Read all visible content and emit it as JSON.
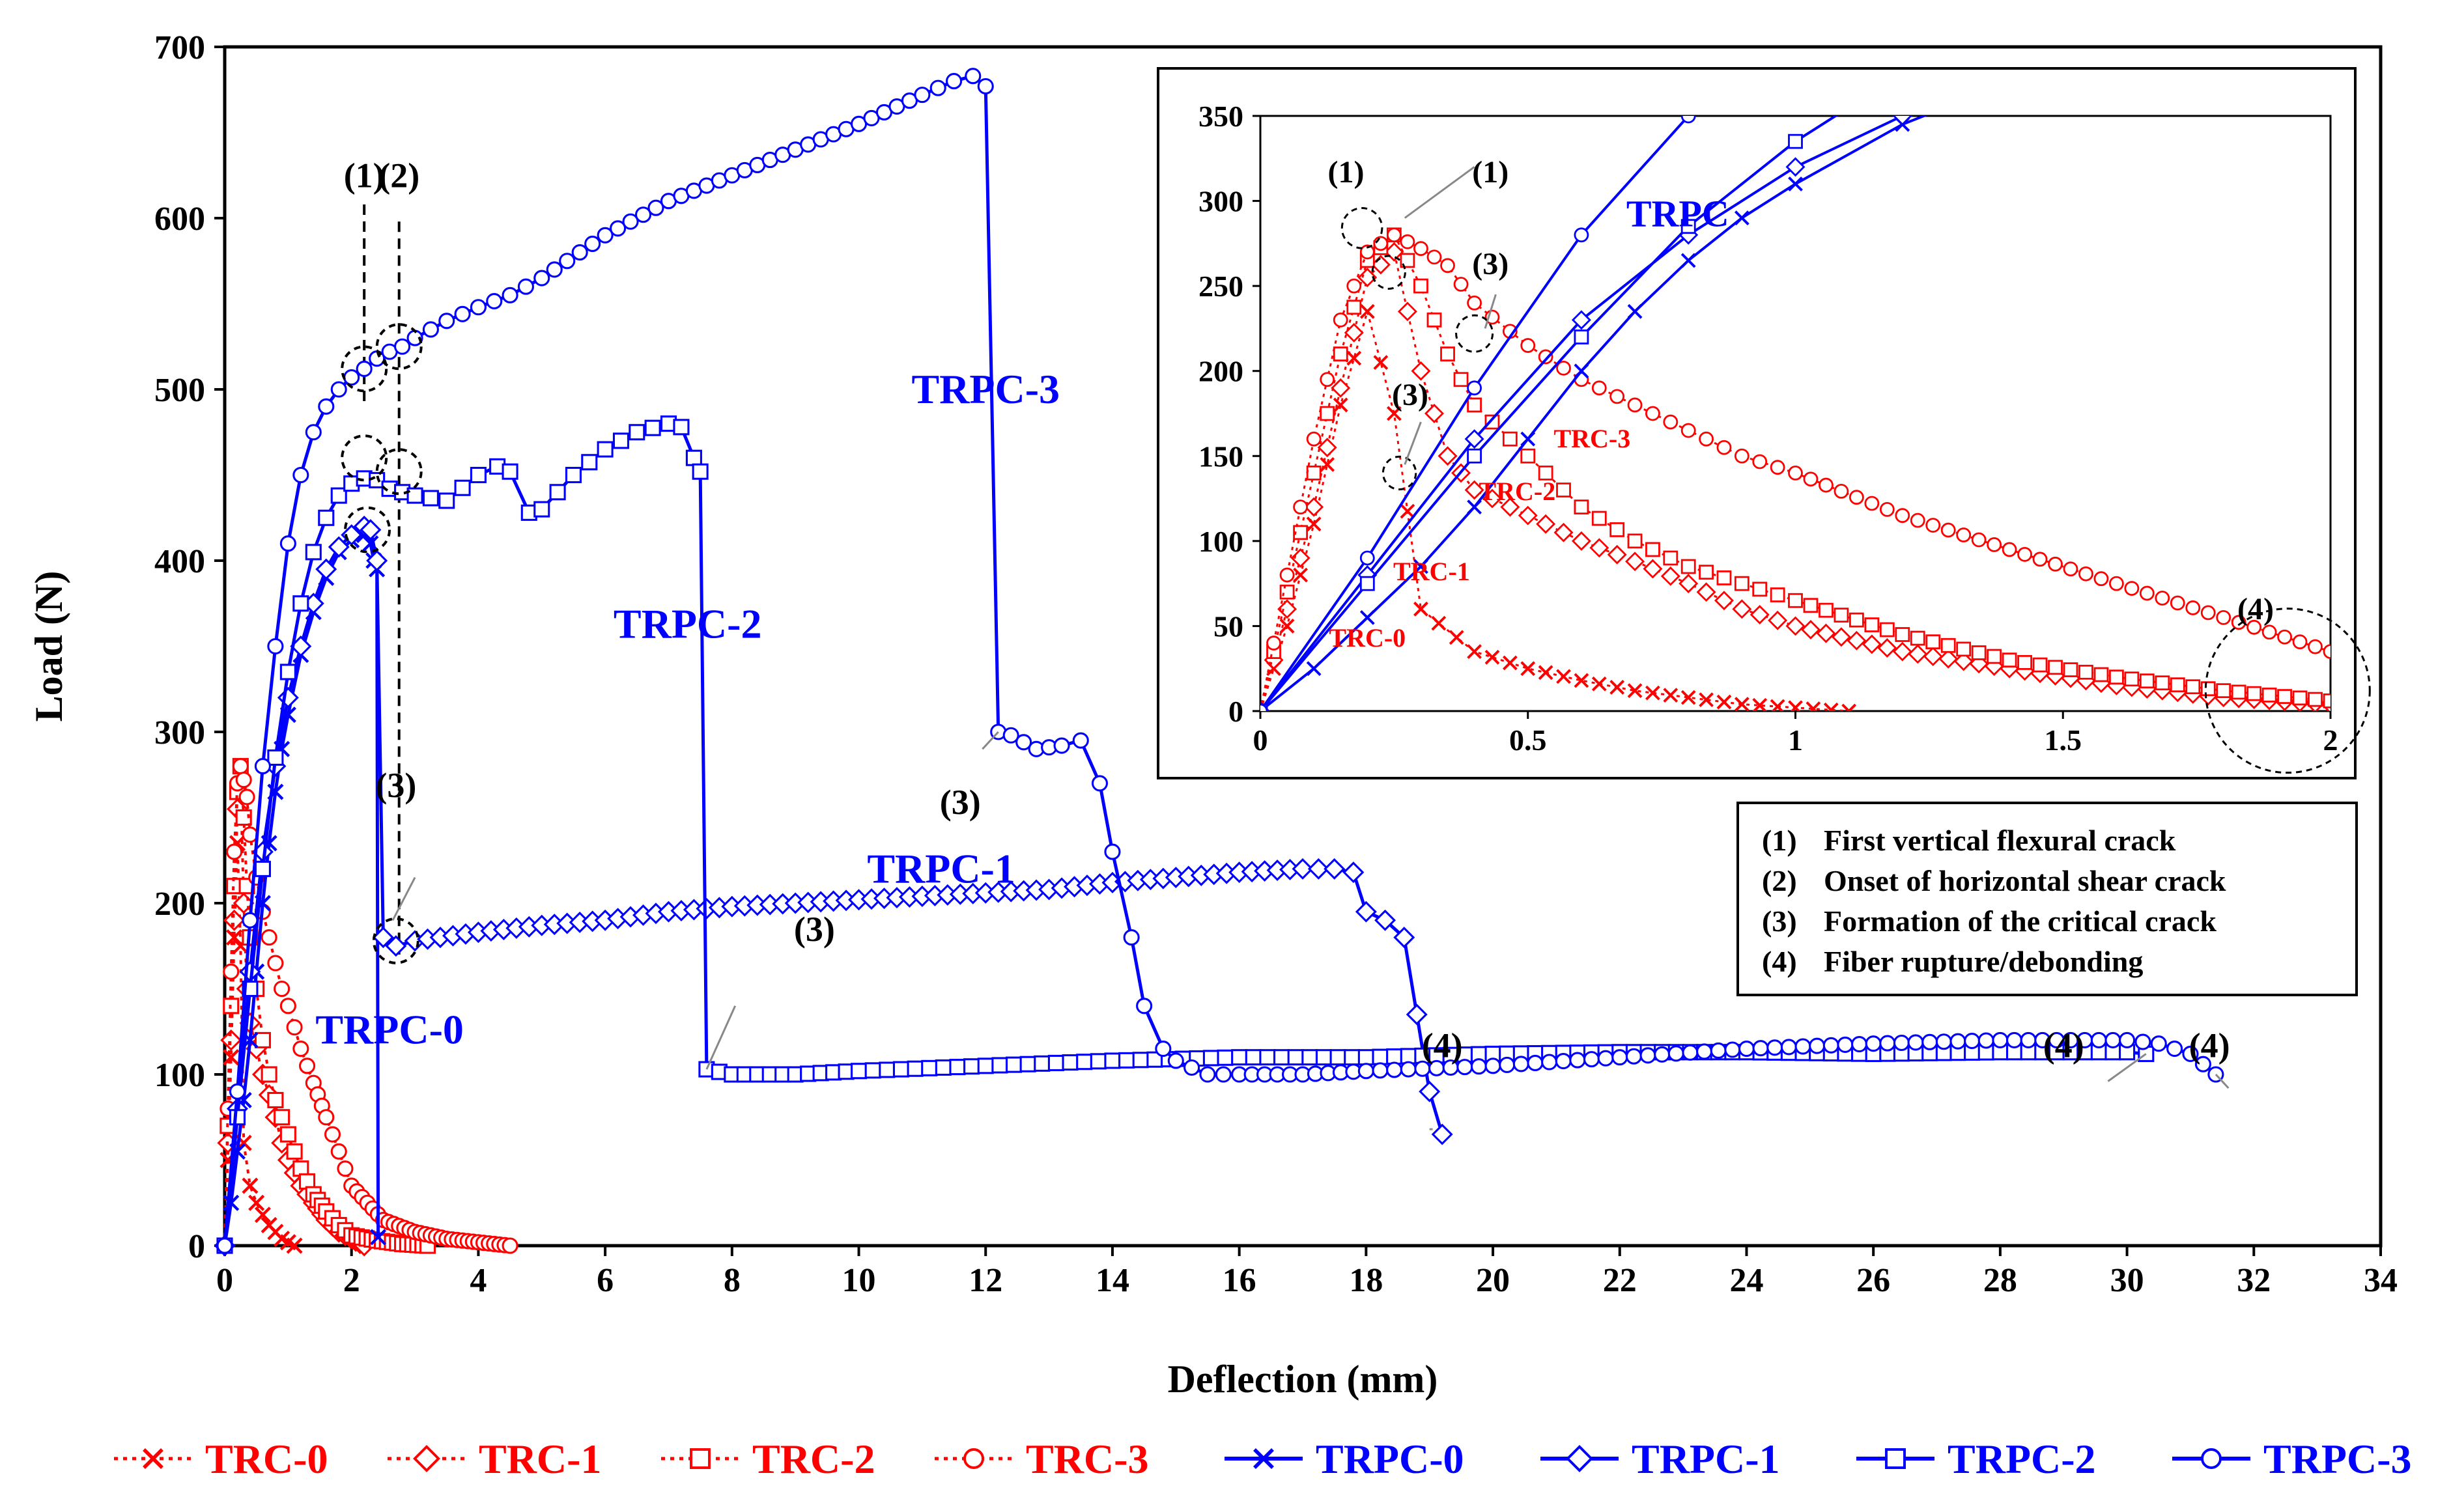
{
  "chart_data": [
    {
      "type": "line",
      "xlabel": "Deflection (mm)",
      "ylabel": "Load (N)",
      "xlim": [
        0,
        34
      ],
      "ylim": [
        0,
        700
      ],
      "xticks": [
        0,
        2,
        4,
        6,
        8,
        10,
        12,
        14,
        16,
        18,
        20,
        22,
        24,
        26,
        28,
        30,
        32,
        34
      ],
      "yticks": [
        0,
        100,
        200,
        300,
        400,
        500,
        600,
        700
      ],
      "grid": false,
      "series": [
        {
          "name": "TRC-0",
          "color": "#ff0000",
          "marker": "x",
          "style": "dotted",
          "x": [
            0,
            0.05,
            0.1,
            0.15,
            0.2,
            0.25,
            0.3,
            0.4,
            0.5,
            0.6,
            0.7,
            0.8,
            0.9,
            1.0,
            1.1
          ],
          "y": [
            0,
            50,
            110,
            180,
            235,
            175,
            60,
            35,
            25,
            18,
            12,
            8,
            4,
            2,
            0
          ]
        },
        {
          "name": "TRC-1",
          "color": "#ff0000",
          "marker": "diamond",
          "style": "dotted",
          "x": [
            0,
            0.05,
            0.1,
            0.15,
            0.2,
            0.25,
            0.3,
            0.35,
            0.4,
            0.5,
            0.6,
            0.7,
            0.8,
            0.9,
            1.0,
            1.2,
            1.4,
            1.6,
            1.8,
            2.0,
            2.2
          ],
          "y": [
            0,
            60,
            120,
            190,
            255,
            270,
            200,
            150,
            130,
            115,
            100,
            88,
            75,
            60,
            50,
            35,
            25,
            15,
            8,
            4,
            0
          ]
        },
        {
          "name": "TRC-2",
          "color": "#ff0000",
          "marker": "square",
          "style": "dotted",
          "x": [
            0,
            0.05,
            0.1,
            0.15,
            0.2,
            0.25,
            0.3,
            0.35,
            0.4,
            0.5,
            0.6,
            0.7,
            0.8,
            0.9,
            1.0,
            1.2,
            1.4,
            1.6,
            1.8,
            2.0,
            2.4,
            2.8,
            3.2
          ],
          "y": [
            0,
            70,
            140,
            210,
            265,
            280,
            250,
            210,
            180,
            150,
            120,
            100,
            85,
            75,
            65,
            45,
            30,
            20,
            12,
            6,
            3,
            1,
            0
          ]
        },
        {
          "name": "TRC-3",
          "color": "#ff0000",
          "marker": "circle",
          "style": "dotted",
          "x": [
            0,
            0.05,
            0.1,
            0.15,
            0.2,
            0.25,
            0.3,
            0.35,
            0.4,
            0.5,
            0.6,
            0.7,
            0.8,
            0.9,
            1.0,
            1.2,
            1.4,
            1.6,
            1.8,
            2.0,
            2.5,
            3.0,
            3.5,
            4.0,
            4.5
          ],
          "y": [
            0,
            80,
            160,
            230,
            270,
            280,
            272,
            262,
            240,
            215,
            195,
            180,
            165,
            150,
            140,
            115,
            95,
            75,
            55,
            35,
            15,
            8,
            4,
            2,
            0
          ]
        },
        {
          "name": "TRPC-0",
          "color": "#0000ff",
          "marker": "x",
          "style": "solid",
          "x": [
            0,
            0.1,
            0.2,
            0.3,
            0.4,
            0.5,
            0.6,
            0.7,
            0.8,
            0.9,
            1.0,
            1.2,
            1.4,
            1.6,
            1.8,
            2.0,
            2.2,
            2.3,
            2.35,
            2.4,
            2.42
          ],
          "y": [
            0,
            25,
            55,
            85,
            120,
            160,
            200,
            235,
            265,
            290,
            310,
            345,
            370,
            390,
            405,
            412,
            415,
            410,
            400,
            395,
            5
          ]
        },
        {
          "name": "TRPC-1",
          "color": "#0000ff",
          "marker": "diamond",
          "style": "solid",
          "x": [
            0,
            0.2,
            0.4,
            0.6,
            0.8,
            1.0,
            1.2,
            1.4,
            1.6,
            1.8,
            2.0,
            2.2,
            2.3,
            2.4,
            2.5,
            2.7,
            3.0,
            4.0,
            5.0,
            6.0,
            7.0,
            8.0,
            9.0,
            10.0,
            11.0,
            12.0,
            13.0,
            14.0,
            15.0,
            16.0,
            17.0,
            17.5,
            17.8,
            18.0,
            18.3,
            18.6,
            19.0,
            19.2
          ],
          "y": [
            0,
            80,
            160,
            230,
            280,
            320,
            350,
            375,
            395,
            408,
            415,
            420,
            418,
            400,
            180,
            175,
            178,
            183,
            187,
            190,
            195,
            198,
            200,
            202,
            204,
            206,
            208,
            212,
            215,
            218,
            220,
            220,
            218,
            195,
            190,
            180,
            90,
            65
          ]
        },
        {
          "name": "TRPC-2",
          "color": "#0000ff",
          "marker": "square",
          "style": "solid",
          "x": [
            0,
            0.2,
            0.4,
            0.6,
            0.8,
            1.0,
            1.2,
            1.4,
            1.6,
            1.8,
            2.0,
            2.2,
            2.4,
            2.6,
            2.8,
            3.0,
            3.5,
            4.0,
            4.3,
            4.5,
            4.8,
            5.0,
            5.5,
            6.0,
            6.5,
            7.0,
            7.2,
            7.4,
            7.5,
            7.6,
            8.0,
            9.0,
            10.0,
            12.0,
            14.0,
            16.0,
            18.0,
            20.0,
            22.0,
            24.0,
            26.0,
            28.0,
            30.0,
            30.3
          ],
          "y": [
            0,
            75,
            150,
            220,
            285,
            335,
            375,
            405,
            425,
            438,
            445,
            448,
            447,
            442,
            440,
            438,
            435,
            450,
            455,
            452,
            428,
            430,
            450,
            465,
            475,
            480,
            478,
            460,
            452,
            103,
            100,
            100,
            102,
            105,
            108,
            110,
            110,
            112,
            113,
            113,
            112,
            113,
            113,
            112
          ]
        },
        {
          "name": "TRPC-3",
          "color": "#0000ff",
          "marker": "circle",
          "style": "solid",
          "x": [
            0,
            0.2,
            0.4,
            0.6,
            0.8,
            1.0,
            1.2,
            1.4,
            1.6,
            1.8,
            2.0,
            2.2,
            2.4,
            2.6,
            2.8,
            3.0,
            3.5,
            4.0,
            4.5,
            5.0,
            6.0,
            7.0,
            8.0,
            9.0,
            10.0,
            11.0,
            11.5,
            11.8,
            12.0,
            12.2,
            12.4,
            12.8,
            13.2,
            13.5,
            13.8,
            14.0,
            14.3,
            14.5,
            14.8,
            15.0,
            15.5,
            16.0,
            17.0,
            18.0,
            20.0,
            22.0,
            24.0,
            26.0,
            28.0,
            30.0,
            30.5,
            31.0,
            31.4
          ],
          "y": [
            0,
            90,
            190,
            280,
            350,
            410,
            450,
            475,
            490,
            500,
            507,
            512,
            518,
            522,
            525,
            530,
            540,
            548,
            555,
            565,
            590,
            610,
            625,
            640,
            655,
            672,
            680,
            683,
            677,
            300,
            298,
            290,
            292,
            295,
            270,
            230,
            180,
            140,
            115,
            108,
            100,
            100,
            100,
            102,
            105,
            110,
            115,
            118,
            120,
            120,
            118,
            112,
            100
          ]
        }
      ],
      "annotations": [
        {
          "text": "(1)",
          "x": 2.2,
          "y": 618
        },
        {
          "text": "(2)",
          "x": 2.75,
          "y": 618
        },
        {
          "text": "TRPC-3",
          "x": 12.0,
          "y": 492
        },
        {
          "text": "TRPC-2",
          "x": 7.3,
          "y": 355
        },
        {
          "text": "TRPC-1",
          "x": 11.3,
          "y": 212
        },
        {
          "text": "TRPC-0",
          "x": 2.6,
          "y": 118
        },
        {
          "text": "(3)",
          "x": 2.7,
          "y": 262
        },
        {
          "text": "(3)",
          "x": 9.3,
          "y": 178
        },
        {
          "text": "(3)",
          "x": 11.6,
          "y": 252
        },
        {
          "text": "(4)",
          "x": 19.2,
          "y": 110
        },
        {
          "text": "(4)",
          "x": 29.0,
          "y": 110
        },
        {
          "text": "(4)",
          "x": 31.3,
          "y": 110
        }
      ]
    },
    {
      "type": "line",
      "title": "inset",
      "xlabel": "",
      "ylabel": "",
      "xlim": [
        0,
        2
      ],
      "ylim": [
        0,
        350
      ],
      "xticks": [
        0,
        0.5,
        1,
        1.5,
        2
      ],
      "xtick_labels": [
        "0",
        "0.5",
        "1",
        "1.5",
        "2"
      ],
      "yticks": [
        0,
        50,
        100,
        150,
        200,
        250,
        300,
        350
      ],
      "annotations": [
        {
          "text": "TRPC",
          "x": 0.78,
          "y": 285
        },
        {
          "text": "TRC-3",
          "x": 0.62,
          "y": 155
        },
        {
          "text": "TRC-2",
          "x": 0.48,
          "y": 124
        },
        {
          "text": "TRC-1",
          "x": 0.32,
          "y": 77
        },
        {
          "text": "TRC-0",
          "x": 0.2,
          "y": 38
        },
        {
          "text": "(1)",
          "x": 0.16,
          "y": 311
        },
        {
          "text": "(1)",
          "x": 0.43,
          "y": 311
        },
        {
          "text": "(3)",
          "x": 0.43,
          "y": 257
        },
        {
          "text": "(3)",
          "x": 0.28,
          "y": 180
        },
        {
          "text": "(4)",
          "x": 1.86,
          "y": 54
        }
      ]
    }
  ],
  "legend": {
    "entries": [
      "TRC-0",
      "TRC-1",
      "TRC-2",
      "TRC-3",
      "TRPC-0",
      "TRPC-1",
      "TRPC-2",
      "TRPC-3"
    ],
    "placement": "bottom"
  },
  "notes_box": {
    "items": [
      {
        "num": "(1)",
        "text": "First vertical flexural crack"
      },
      {
        "num": "(2)",
        "text": "Onset of horizontal shear crack"
      },
      {
        "num": "(3)",
        "text": "Formation of the critical crack"
      },
      {
        "num": "(4)",
        "text": "Fiber rupture/debonding"
      }
    ]
  }
}
